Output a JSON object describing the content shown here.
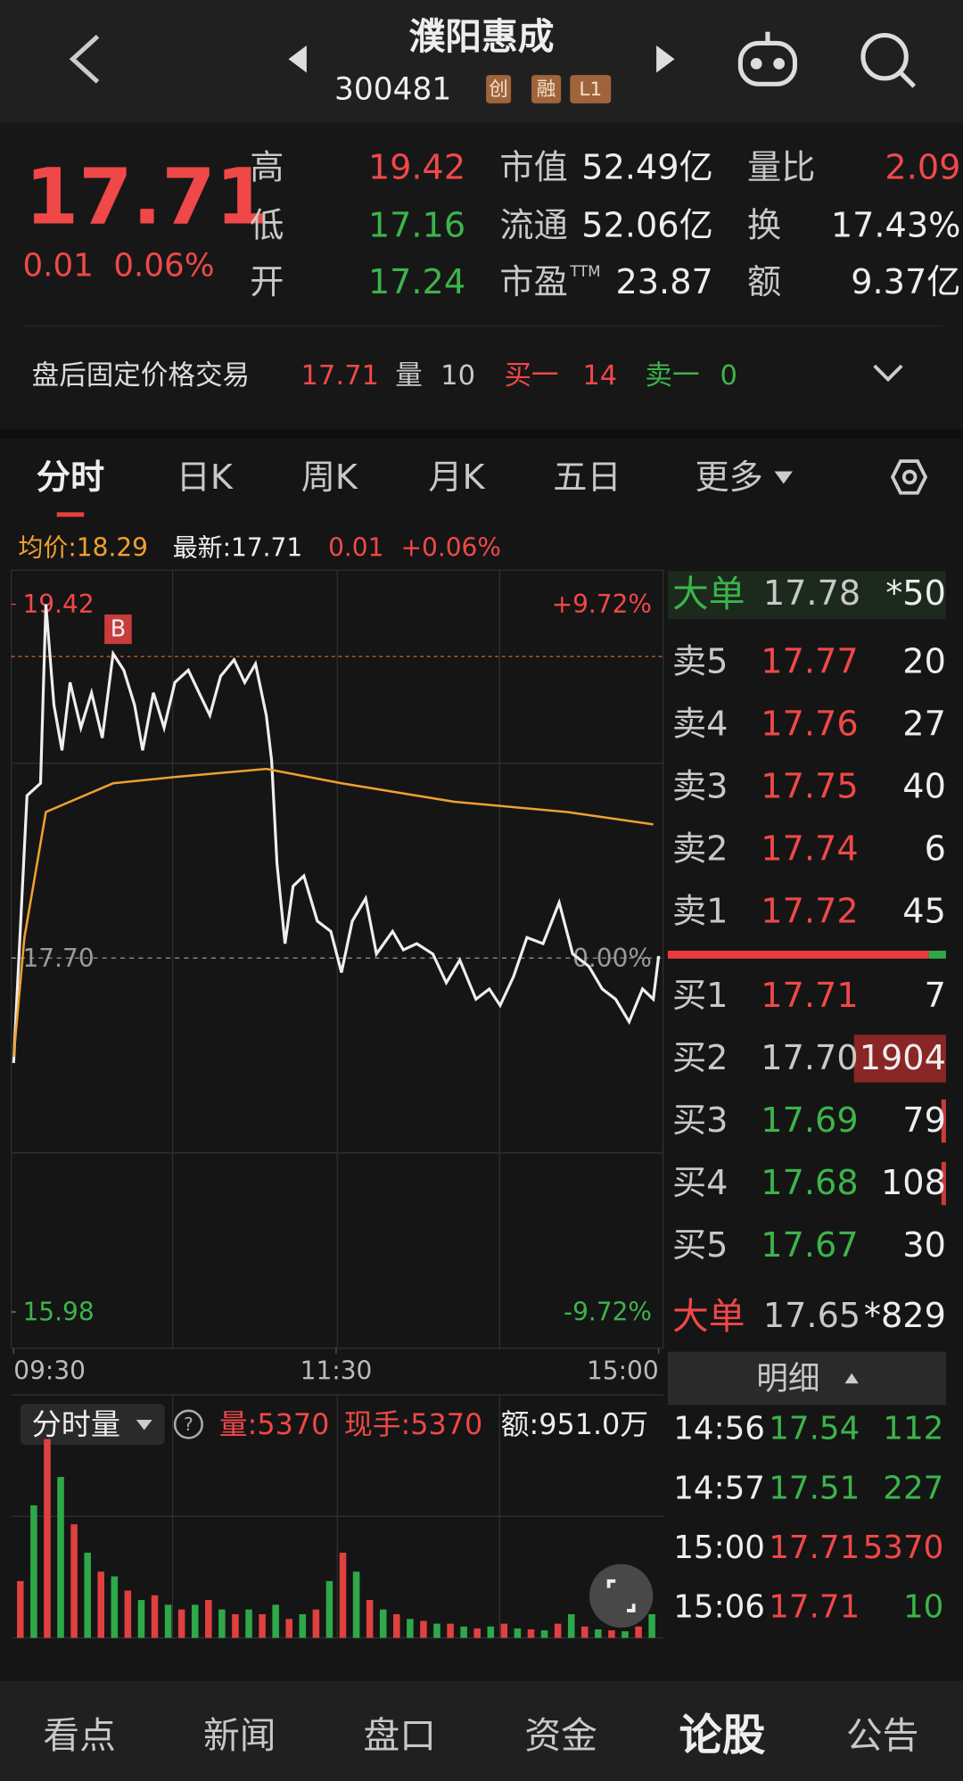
{
  "header": {
    "title": "濮阳惠成",
    "code": "300481",
    "badges": [
      "创",
      "融",
      "L1"
    ]
  },
  "quote": {
    "price": "17.71",
    "change": "0.01",
    "change_pct": "0.06%",
    "stats": [
      {
        "label": "高",
        "value": "19.42"
      },
      {
        "label": "低",
        "value": "17.16"
      },
      {
        "label": "开",
        "value": "17.24"
      },
      {
        "label": "市值",
        "value": "52.49亿"
      },
      {
        "label": "流通",
        "value": "52.06亿"
      },
      {
        "label": "市盈",
        "sup": "TTM",
        "value": "23.87"
      },
      {
        "label": "量比",
        "value": "2.09"
      },
      {
        "label": "换",
        "value": "17.43%"
      },
      {
        "label": "额",
        "value": "9.37亿"
      }
    ]
  },
  "after_hours": {
    "label": "盘后固定价格交易",
    "price": "17.71",
    "vol_label": "量",
    "vol": "10",
    "buy_label": "买一",
    "buy": "14",
    "sell_label": "卖一",
    "sell": "0"
  },
  "tabs": [
    "分时",
    "日K",
    "周K",
    "月K",
    "五日",
    "更多"
  ],
  "info": {
    "avg": "均价:18.29",
    "latest": "最新:17.71",
    "change": "0.01",
    "change_pct": "+0.06%"
  },
  "chart_data": [
    {
      "type": "line",
      "ylim": [
        15.98,
        19.42
      ],
      "yticks": [
        19.42,
        {
          "value": 17.7,
          "label": "17.70"
        },
        15.98
      ],
      "pct_labels": [
        "+9.72%",
        "0.00%",
        "-9.72%"
      ],
      "reference": 17.7,
      "marker_label": "B",
      "xlim": [
        0,
        240
      ],
      "xticks": [
        {
          "value": 0,
          "label": "09:30"
        },
        {
          "value": 120,
          "label": "11:30"
        },
        {
          "value": 240,
          "label": "15:00"
        }
      ],
      "series": [
        {
          "name": "price",
          "color": "#eeeeee",
          "x": [
            0,
            5,
            10,
            12,
            15,
            18,
            21,
            25,
            29,
            33,
            37,
            41,
            45,
            48,
            52,
            56,
            60,
            65,
            69,
            73,
            77,
            82,
            86,
            90,
            94,
            96,
            98,
            101,
            104,
            108,
            113,
            118,
            122,
            126,
            131,
            135,
            141,
            145,
            150,
            156,
            161,
            166,
            172,
            177,
            181,
            186,
            191,
            197,
            203,
            208,
            214,
            219,
            224,
            229,
            234,
            238,
            240
          ],
          "values": [
            17.19,
            18.49,
            18.55,
            19.42,
            18.93,
            18.71,
            19.04,
            18.82,
            18.99,
            18.77,
            19.18,
            19.1,
            18.93,
            18.71,
            18.99,
            18.82,
            19.04,
            19.1,
            18.99,
            18.88,
            19.07,
            19.15,
            19.04,
            19.13,
            18.88,
            18.66,
            18.16,
            17.77,
            18.05,
            18.1,
            17.88,
            17.83,
            17.63,
            17.88,
            17.99,
            17.72,
            17.83,
            17.74,
            17.77,
            17.72,
            17.58,
            17.69,
            17.5,
            17.55,
            17.47,
            17.61,
            17.8,
            17.77,
            17.97,
            17.72,
            17.66,
            17.55,
            17.5,
            17.39,
            17.55,
            17.5,
            17.71
          ]
        },
        {
          "name": "avg",
          "color": "#f0a030",
          "x": [
            0,
            4,
            12,
            37,
            60,
            94,
            122,
            164,
            206,
            238
          ],
          "values": [
            17.22,
            17.8,
            18.41,
            18.55,
            18.58,
            18.62,
            18.55,
            18.46,
            18.41,
            18.35
          ]
        }
      ]
    },
    {
      "type": "bar",
      "title": "分时量",
      "annotations": [
        "量:5370",
        "现手:5370",
        "额:951.0万"
      ],
      "ylim": [
        0,
        24000
      ],
      "colors": [
        "#e04040",
        "#2fa84a"
      ],
      "values": [
        6000,
        14000,
        21000,
        17000,
        12000,
        9000,
        7000,
        6500,
        5000,
        4000,
        4500,
        3500,
        3000,
        3500,
        4000,
        3000,
        2500,
        3000,
        2500,
        3500,
        2000,
        2500,
        3000,
        6000,
        9000,
        7000,
        4000,
        3000,
        2500,
        2000,
        1800,
        1500,
        1500,
        1200,
        1000,
        1200,
        1500,
        1000,
        900,
        800,
        1500,
        2500,
        1200,
        900,
        800,
        700,
        1200,
        2500
      ]
    }
  ],
  "order_book": {
    "top": {
      "label": "大单",
      "price": "17.78",
      "qty": "*50"
    },
    "asks": [
      {
        "label": "卖5",
        "price": "17.77",
        "qty": "20"
      },
      {
        "label": "卖4",
        "price": "17.76",
        "qty": "27"
      },
      {
        "label": "卖3",
        "price": "17.75",
        "qty": "40"
      },
      {
        "label": "卖2",
        "price": "17.74",
        "qty": "6"
      },
      {
        "label": "卖1",
        "price": "17.72",
        "qty": "45"
      }
    ],
    "bids": [
      {
        "label": "买1",
        "price": "17.71",
        "qty": "7"
      },
      {
        "label": "买2",
        "price": "17.70",
        "qty": "1904"
      },
      {
        "label": "买3",
        "price": "17.69",
        "qty": "79"
      },
      {
        "label": "买4",
        "price": "17.68",
        "qty": "108"
      },
      {
        "label": "买5",
        "price": "17.67",
        "qty": "30"
      }
    ],
    "bottom": {
      "label": "大单",
      "price": "17.65",
      "qty": "*829"
    }
  },
  "ticks": {
    "header": "明细",
    "rows": [
      [
        "14:56",
        "17.54",
        "112"
      ],
      [
        "14:57",
        "17.51",
        "227"
      ],
      [
        "15:00",
        "17.71",
        "5370"
      ],
      [
        "15:06",
        "17.71",
        "10"
      ]
    ]
  },
  "nav": [
    "看点",
    "新闻",
    "盘口",
    "资金",
    "论股",
    "公告"
  ]
}
